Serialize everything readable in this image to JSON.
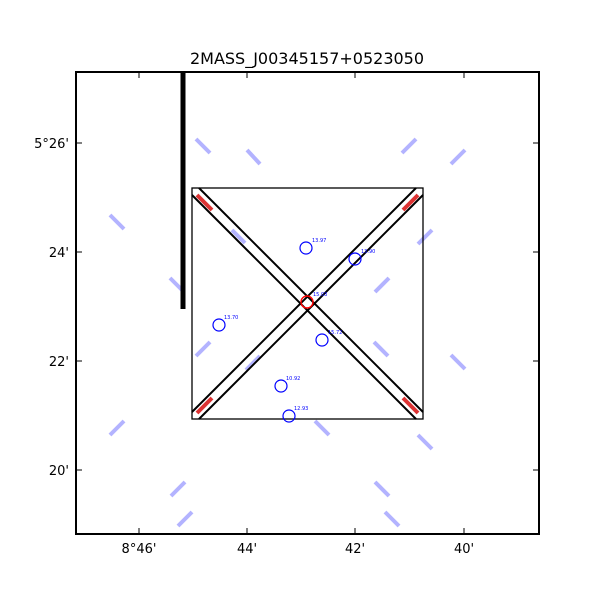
{
  "title": "2MASS_J00345157+0523050",
  "colors": {
    "frame": "#000000",
    "target": "#ff0000",
    "star": "#0000ff",
    "diffraction_spike": "#b3b3ff",
    "spike_accent": "#dd3333"
  },
  "axes": {
    "x_label": "",
    "y_label": "",
    "x_ticks": [
      "8°46'",
      "44'",
      "42'",
      "40'"
    ],
    "y_ticks": [
      "5°26'",
      "24'",
      "22'",
      "20'"
    ]
  },
  "target": {
    "magnitude": "15.03"
  },
  "stars": [
    {
      "magnitude": "13.97"
    },
    {
      "magnitude": "13.90"
    },
    {
      "magnitude": "13.70"
    },
    {
      "magnitude": "15.72"
    },
    {
      "magnitude": "10.92"
    },
    {
      "magnitude": "12.93"
    }
  ]
}
